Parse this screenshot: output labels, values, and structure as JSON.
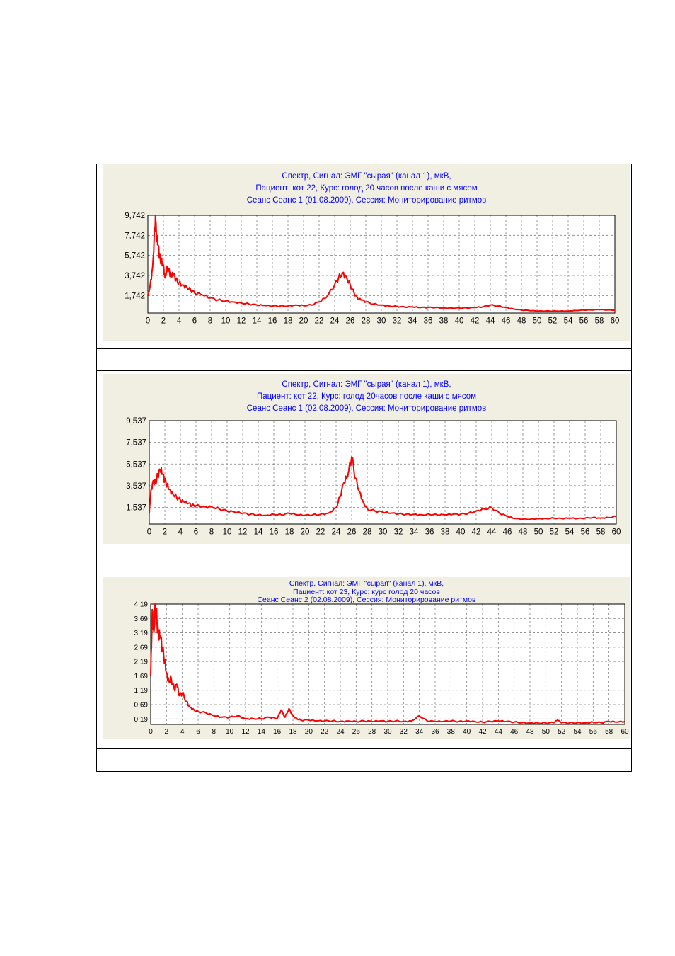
{
  "chart_data": [
    {
      "type": "line",
      "title_lines": [
        "Спектр, Сигнал: ЭМГ \"сырая\" (канал 1), мкВ,",
        "Пациент: кот 22, Курс: голод 20 часов после каши с мясом",
        "Сеанс Сеанс 1 (01.08.2009), Сессия:    Мониторирование  ритмов"
      ],
      "xlim": [
        0,
        60
      ],
      "ylim": [
        0,
        9.742
      ],
      "x_ticks": [
        "0",
        "2",
        "4",
        "6",
        "8",
        "10",
        "12",
        "14",
        "16",
        "18",
        "20",
        "22",
        "24",
        "26",
        "28",
        "30",
        "32",
        "34",
        "36",
        "38",
        "40",
        "42",
        "44",
        "46",
        "48",
        "50",
        "52",
        "54",
        "56",
        "58",
        "60"
      ],
      "y_ticks": [
        {
          "value": 1.742,
          "label": "1,742"
        },
        {
          "value": 3.742,
          "label": "3,742"
        },
        {
          "value": 5.742,
          "label": "5,742"
        },
        {
          "value": 7.742,
          "label": "7,742"
        },
        {
          "value": 9.742,
          "label": "9,742"
        }
      ],
      "grid": true,
      "series_color": "#ff0000",
      "series": [
        {
          "x": [
            0,
            0.3,
            0.6,
            0.9,
            1.0,
            1.1,
            1.3,
            1.5,
            1.7,
            2.0,
            2.2,
            2.5,
            2.8,
            3.0,
            3.3,
            3.6,
            4.0,
            4.5,
            5.0,
            5.5,
            6,
            7,
            8,
            9,
            10,
            11,
            12,
            13,
            14,
            15,
            16,
            17,
            18,
            19,
            20,
            21,
            22,
            23,
            24,
            24.5,
            25,
            25.5,
            26,
            26.5,
            27,
            27.5,
            28,
            29,
            30,
            31,
            32,
            33,
            34,
            35,
            36,
            37,
            38,
            39,
            40,
            41,
            42,
            43,
            44,
            45,
            46,
            47,
            48,
            49,
            50,
            51,
            52,
            53,
            54,
            55,
            56,
            57,
            58,
            59,
            60
          ],
          "y": [
            1.7,
            2.8,
            4.5,
            8.5,
            9.74,
            7.5,
            6.8,
            5.6,
            5.2,
            4.8,
            3.5,
            4.6,
            4.0,
            3.6,
            3.9,
            3.3,
            3.0,
            2.8,
            2.6,
            2.3,
            2.0,
            1.8,
            1.5,
            1.3,
            1.2,
            1.1,
            1.0,
            0.9,
            0.8,
            0.75,
            0.7,
            0.7,
            0.7,
            0.8,
            0.75,
            0.8,
            1.1,
            1.6,
            2.8,
            3.5,
            4.0,
            3.6,
            2.8,
            2.0,
            1.4,
            1.3,
            1.1,
            0.9,
            0.8,
            0.7,
            0.65,
            0.6,
            0.6,
            0.55,
            0.55,
            0.55,
            0.5,
            0.5,
            0.5,
            0.5,
            0.55,
            0.6,
            0.8,
            0.7,
            0.55,
            0.4,
            0.3,
            0.25,
            0.2,
            0.2,
            0.2,
            0.2,
            0.2,
            0.25,
            0.3,
            0.3,
            0.35,
            0.3,
            0.3
          ]
        }
      ]
    },
    {
      "type": "line",
      "title_lines": [
        "Спектр, Сигнал: ЭМГ \"сырая\" (канал 1), мкВ,",
        "Пациент: кот 22, Курс: голод 20часов после каши с мясом",
        "Сеанс Сеанс 1 (02.08.2009), Сессия:    Мониторирование  ритмов"
      ],
      "xlim": [
        0,
        60
      ],
      "ylim": [
        0,
        9.537
      ],
      "x_ticks": [
        "0",
        "2",
        "4",
        "6",
        "8",
        "10",
        "12",
        "14",
        "16",
        "18",
        "20",
        "22",
        "24",
        "26",
        "28",
        "30",
        "32",
        "34",
        "36",
        "38",
        "40",
        "42",
        "44",
        "46",
        "48",
        "50",
        "52",
        "54",
        "56",
        "58",
        "60"
      ],
      "y_ticks": [
        {
          "value": 1.537,
          "label": "1,537"
        },
        {
          "value": 3.537,
          "label": "3,537"
        },
        {
          "value": 5.537,
          "label": "5,537"
        },
        {
          "value": 7.537,
          "label": "7,537"
        },
        {
          "value": 9.537,
          "label": "9,537"
        }
      ],
      "grid": true,
      "series_color": "#ff0000",
      "series": [
        {
          "x": [
            0,
            0.2,
            0.5,
            0.8,
            1.1,
            1.4,
            1.7,
            2.0,
            2.3,
            2.6,
            3.0,
            3.5,
            4,
            4.5,
            5,
            5.5,
            6,
            7,
            8,
            9,
            10,
            11,
            12,
            13,
            14,
            15,
            16,
            17,
            18,
            19,
            20,
            21,
            22,
            23,
            24,
            24.5,
            25,
            25.5,
            26,
            26.5,
            27,
            27.5,
            28,
            29,
            30,
            31,
            32,
            33,
            34,
            35,
            36,
            37,
            38,
            39,
            40,
            41,
            42,
            43,
            44,
            45,
            46,
            47,
            48,
            49,
            50,
            51,
            52,
            53,
            54,
            55,
            56,
            57,
            58,
            59,
            60
          ],
          "y": [
            1.0,
            3.0,
            4.0,
            3.8,
            4.5,
            5.0,
            4.6,
            4.0,
            3.6,
            3.2,
            2.8,
            2.5,
            2.2,
            2.0,
            1.9,
            1.7,
            1.7,
            1.6,
            1.6,
            1.4,
            1.2,
            1.1,
            1.0,
            0.9,
            0.85,
            0.8,
            0.9,
            0.85,
            1.0,
            0.85,
            0.8,
            0.85,
            0.9,
            1.0,
            1.5,
            2.5,
            3.8,
            4.4,
            6.2,
            4.2,
            3.0,
            2.0,
            1.4,
            1.2,
            1.1,
            1.0,
            0.95,
            0.9,
            0.9,
            0.85,
            0.9,
            0.85,
            0.85,
            0.9,
            0.9,
            1.0,
            1.2,
            1.4,
            1.5,
            1.0,
            0.7,
            0.5,
            0.45,
            0.45,
            0.5,
            0.5,
            0.55,
            0.5,
            0.55,
            0.5,
            0.55,
            0.6,
            0.55,
            0.6,
            0.7
          ]
        }
      ]
    },
    {
      "type": "line",
      "title_lines": [
        "Спектр, Сигнал: ЭМГ \"сырая\" (канал 1), мкВ,",
        "Пациент: кот 23, Курс: курс голод 20 часов",
        "Сеанс Сеанс 2 (02.08.2009), Сессия:    Мониторирование  ритмов"
      ],
      "xlim": [
        0,
        60
      ],
      "ylim": [
        0,
        4.19
      ],
      "x_ticks": [
        "0",
        "2",
        "4",
        "6",
        "8",
        "10",
        "12",
        "14",
        "16",
        "18",
        "20",
        "22",
        "24",
        "26",
        "28",
        "30",
        "32",
        "34",
        "36",
        "38",
        "40",
        "42",
        "44",
        "46",
        "48",
        "50",
        "52",
        "54",
        "56",
        "58",
        "60"
      ],
      "y_ticks": [
        {
          "value": 0.19,
          "label": "0,19"
        },
        {
          "value": 0.69,
          "label": "0,69"
        },
        {
          "value": 1.19,
          "label": "1,19"
        },
        {
          "value": 1.69,
          "label": "1,69"
        },
        {
          "value": 2.19,
          "label": "2,19"
        },
        {
          "value": 2.69,
          "label": "2,69"
        },
        {
          "value": 3.19,
          "label": "3,19"
        },
        {
          "value": 3.69,
          "label": "3,69"
        },
        {
          "value": 4.19,
          "label": "4,19"
        }
      ],
      "grid": true,
      "series_color": "#ff0000",
      "series": [
        {
          "x": [
            0,
            0.2,
            0.4,
            0.6,
            0.8,
            1.0,
            1.2,
            1.5,
            1.8,
            2.0,
            2.3,
            2.6,
            3.0,
            3.3,
            3.6,
            4.0,
            4.5,
            5,
            5.5,
            6,
            7,
            8,
            9,
            10,
            11,
            12,
            13,
            14,
            15,
            16,
            16.5,
            17,
            17.5,
            18,
            18.5,
            19,
            20,
            21,
            22,
            23,
            24,
            25,
            26,
            27,
            28,
            29,
            30,
            31,
            32,
            33,
            34,
            35,
            36,
            37,
            38,
            39,
            40,
            41,
            42,
            43,
            44,
            45,
            46,
            47,
            48,
            49,
            50,
            51,
            51.5,
            52,
            53,
            54,
            55,
            56,
            57,
            58,
            59,
            60
          ],
          "y": [
            1.7,
            4.0,
            3.2,
            4.19,
            3.6,
            3.0,
            3.1,
            2.6,
            2.2,
            1.8,
            1.5,
            1.6,
            1.2,
            1.4,
            1.0,
            1.1,
            0.8,
            0.6,
            0.5,
            0.45,
            0.4,
            0.3,
            0.25,
            0.25,
            0.3,
            0.2,
            0.2,
            0.2,
            0.25,
            0.2,
            0.5,
            0.25,
            0.55,
            0.3,
            0.2,
            0.15,
            0.15,
            0.12,
            0.12,
            0.12,
            0.1,
            0.12,
            0.1,
            0.12,
            0.1,
            0.12,
            0.1,
            0.12,
            0.1,
            0.12,
            0.3,
            0.12,
            0.1,
            0.1,
            0.12,
            0.1,
            0.12,
            0.1,
            0.08,
            0.1,
            0.12,
            0.1,
            0.08,
            0.06,
            0.05,
            0.05,
            0.05,
            0.06,
            0.15,
            0.06,
            0.05,
            0.06,
            0.05,
            0.08,
            0.06,
            0.1,
            0.08,
            0.1
          ]
        }
      ]
    }
  ]
}
